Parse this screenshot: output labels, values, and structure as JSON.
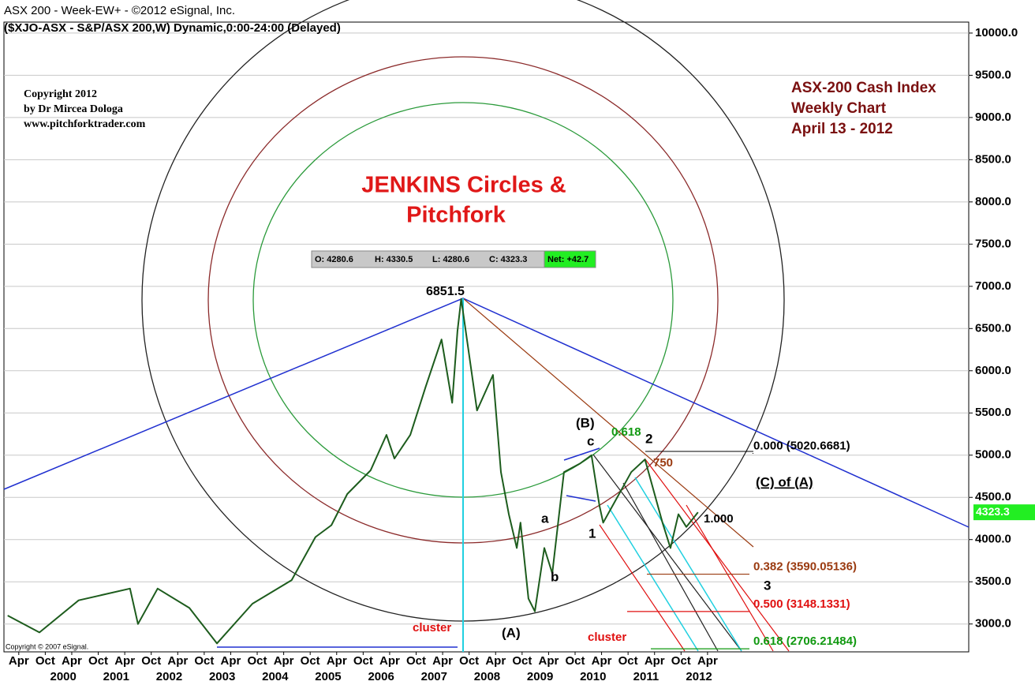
{
  "chart_data": {
    "type": "line",
    "title": "ASX 200 -  Week-EW+ - ©2012 eSignal, Inc.",
    "subtitle": "($XJO-ASX - S&P/ASX 200,W) Dynamic,0:00-24:00 (Delayed)",
    "copyright": [
      "Copyright 2012",
      "by Dr Mircea Dologa",
      "www.pitchforktrader.com"
    ],
    "info": [
      "ASX-200 Cash Index",
      "Weekly Chart",
      "April 13 - 2012"
    ],
    "headline": [
      "JENKINS Circles &",
      "Pitchfork"
    ],
    "ohlc": [
      "O: 4280.6",
      "H: 4330.5",
      "L: 4280.6",
      "C: 4323.3",
      "Net: +42.7"
    ],
    "vendor_note": "Copyright © 2007 eSignal.",
    "series": [
      {
        "name": "$XJO-ASX",
        "color": "#1d5c1d",
        "x": [
          1999.04,
          1999.64,
          2000.38,
          2001.35,
          2001.5,
          2001.87,
          2002.47,
          2002.99,
          2003.66,
          2004.4,
          2004.85,
          2005.15,
          2005.45,
          2005.89,
          2006.19,
          2006.34,
          2006.64,
          2006.93,
          2007.23,
          2007.43,
          2007.53,
          2007.6,
          2007.9,
          2008.2,
          2008.35,
          2008.5,
          2008.65,
          2008.72,
          2008.87,
          2008.99,
          2009.17,
          2009.32,
          2009.54,
          2009.84,
          2010.06,
          2010.21,
          2010.28,
          2010.81,
          2011.07,
          2011.4,
          2011.55,
          2011.7,
          2011.85,
          2012.07
        ],
        "values": [
          3100,
          2900,
          3280,
          3420,
          3000,
          3420,
          3190,
          2770,
          3240,
          3520,
          4030,
          4170,
          4540,
          4820,
          5240,
          4960,
          5240,
          5810,
          6370,
          5620,
          6470,
          6851.5,
          5530,
          5950,
          4800,
          4300,
          3900,
          4200,
          3300,
          3150,
          3900,
          3600,
          4800,
          4900,
          5000,
          4400,
          4200,
          4800,
          4950,
          4200,
          3900,
          4300,
          4150,
          4323.3
        ]
      }
    ],
    "last_value": 4323.3,
    "fib_levels": [
      {
        "price": 5020.6681,
        "label": "0.000 (5020.6681)",
        "color": "#000000"
      },
      {
        "price": 3590.05136,
        "label": "0.382 (3590.05136)",
        "color": "#9a3a10"
      },
      {
        "price": 3148.1331,
        "label": "0.500 (3148.1331)",
        "color": "#e01010"
      },
      {
        "price": 2706.21484,
        "label": "0.618 (2706.21484)",
        "color": "#119911"
      }
    ],
    "annotations": [
      {
        "text": "6851.5",
        "color": "#000000"
      },
      {
        "text": "(B)",
        "color": "#000000"
      },
      {
        "text": "c",
        "color": "#000000"
      },
      {
        "text": "0.618",
        "color": "#119911"
      },
      {
        "text": "2",
        "color": "#000000"
      },
      {
        "text": "750",
        "color": "#9a3a10"
      },
      {
        "text": "(C) of (A)",
        "color": "#000000"
      },
      {
        "text": "1.000",
        "color": "#000000"
      },
      {
        "text": "a",
        "color": "#000000"
      },
      {
        "text": "b",
        "color": "#000000"
      },
      {
        "text": "1",
        "color": "#000000"
      },
      {
        "text": "3",
        "color": "#000000"
      },
      {
        "text": "(A)",
        "color": "#000000"
      },
      {
        "text": "cluster",
        "color": "#e01010"
      },
      {
        "text": "cluster",
        "color": "#e01010"
      }
    ],
    "xlim": [
      1998.97,
      2017.18
    ],
    "xticks": [
      {
        "value": 1999.25,
        "label": "Apr"
      },
      {
        "value": 1999.75,
        "label": "Oct"
      },
      {
        "value": 2000.25,
        "label": "Apr"
      },
      {
        "value": 2000.75,
        "label": "Oct"
      },
      {
        "value": 2001.25,
        "label": "Apr"
      },
      {
        "value": 2001.75,
        "label": "Oct"
      },
      {
        "value": 2002.25,
        "label": "Apr"
      },
      {
        "value": 2002.75,
        "label": "Oct"
      },
      {
        "value": 2003.25,
        "label": "Apr"
      },
      {
        "value": 2003.75,
        "label": "Oct"
      },
      {
        "value": 2004.25,
        "label": "Apr"
      },
      {
        "value": 2004.75,
        "label": "Oct"
      },
      {
        "value": 2005.25,
        "label": "Apr"
      },
      {
        "value": 2005.75,
        "label": "Oct"
      },
      {
        "value": 2006.25,
        "label": "Apr"
      },
      {
        "value": 2006.75,
        "label": "Oct"
      },
      {
        "value": 2007.25,
        "label": "Apr"
      },
      {
        "value": 2007.75,
        "label": "Oct"
      },
      {
        "value": 2008.25,
        "label": "Apr"
      },
      {
        "value": 2008.75,
        "label": "Oct"
      },
      {
        "value": 2009.25,
        "label": "Apr"
      },
      {
        "value": 2009.75,
        "label": "Oct"
      },
      {
        "value": 2010.25,
        "label": "Apr"
      },
      {
        "value": 2010.75,
        "label": "Oct"
      },
      {
        "value": 2011.25,
        "label": "Apr"
      },
      {
        "value": 2011.75,
        "label": "Oct"
      },
      {
        "value": 2012.25,
        "label": "Apr"
      }
    ],
    "year_ticks": [
      2000,
      2001,
      2002,
      2003,
      2004,
      2005,
      2006,
      2007,
      2008,
      2009,
      2010,
      2011,
      2012
    ],
    "ylim": [
      2670,
      10130
    ],
    "yticks": [
      {
        "value": 3000,
        "label": "3000.0"
      },
      {
        "value": 3500,
        "label": "3500.0"
      },
      {
        "value": 4000,
        "label": "4000.0"
      },
      {
        "value": 4500,
        "label": "4500.0"
      },
      {
        "value": 5000,
        "label": "5000.0"
      },
      {
        "value": 5500,
        "label": "5500.0"
      },
      {
        "value": 6000,
        "label": "6000.0"
      },
      {
        "value": 6500,
        "label": "6500.0"
      },
      {
        "value": 7000,
        "label": "7000.0"
      },
      {
        "value": 7500,
        "label": "7500.0"
      },
      {
        "value": 8000,
        "label": "8000.0"
      },
      {
        "value": 8500,
        "label": "8500.0"
      },
      {
        "value": 9000,
        "label": "9000.0"
      },
      {
        "value": 9500,
        "label": "9500.0"
      },
      {
        "value": 10000,
        "label": "10000.0"
      }
    ],
    "grid": true
  }
}
